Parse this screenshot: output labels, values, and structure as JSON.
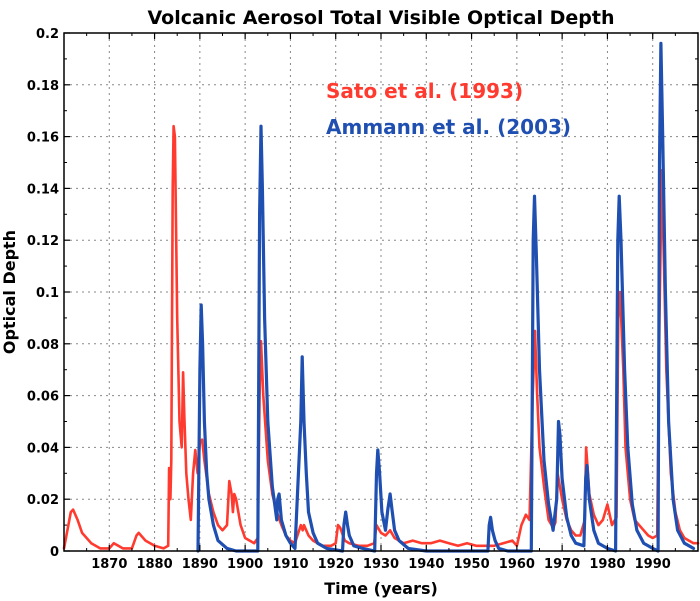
{
  "chart_data": {
    "type": "line",
    "title": "Volcanic Aerosol Total Visible Optical Depth",
    "xlabel": "Time (years)",
    "ylabel": "Optical Depth",
    "xlim": [
      1860,
      2000
    ],
    "ylim": [
      0,
      0.2
    ],
    "x_ticks": [
      1870,
      1880,
      1890,
      1900,
      1910,
      1920,
      1930,
      1940,
      1950,
      1960,
      1970,
      1980,
      1990
    ],
    "y_ticks": [
      0,
      0.02,
      0.04,
      0.06,
      0.08,
      0.1,
      0.12,
      0.14,
      0.16,
      0.18,
      0.2
    ],
    "y_tick_labels": [
      "0",
      "0.02",
      "0.04",
      "0.06",
      "0.08",
      "0.1",
      "0.12",
      "0.14",
      "0.16",
      "0.18",
      "0.2"
    ],
    "grid": true,
    "legend_position": "top-center",
    "series": [
      {
        "name": "Sato et al. (1993)",
        "color": "#ff3b30",
        "points": [
          [
            1860,
            0.001
          ],
          [
            1861.5,
            0.015
          ],
          [
            1862,
            0.016
          ],
          [
            1863,
            0.012
          ],
          [
            1864,
            0.007
          ],
          [
            1866,
            0.003
          ],
          [
            1868,
            0.001
          ],
          [
            1870,
            0.001
          ],
          [
            1871,
            0.003
          ],
          [
            1872,
            0.002
          ],
          [
            1873,
            0.001
          ],
          [
            1875,
            0.001
          ],
          [
            1876,
            0.006
          ],
          [
            1876.5,
            0.007
          ],
          [
            1878,
            0.004
          ],
          [
            1880,
            0.002
          ],
          [
            1882,
            0.001
          ],
          [
            1883,
            0.002
          ],
          [
            1883.2,
            0.032
          ],
          [
            1883.5,
            0.02
          ],
          [
            1883.7,
            0.035
          ],
          [
            1884,
            0.14
          ],
          [
            1884.2,
            0.164
          ],
          [
            1884.5,
            0.16
          ],
          [
            1885,
            0.09
          ],
          [
            1885.5,
            0.05
          ],
          [
            1886,
            0.04
          ],
          [
            1886.3,
            0.069
          ],
          [
            1886.6,
            0.05
          ],
          [
            1887,
            0.03
          ],
          [
            1887.5,
            0.02
          ],
          [
            1888,
            0.012
          ],
          [
            1888.5,
            0.03
          ],
          [
            1889,
            0.039
          ],
          [
            1889.5,
            0.03
          ],
          [
            1890,
            0.042
          ],
          [
            1890.5,
            0.043
          ],
          [
            1891,
            0.035
          ],
          [
            1892,
            0.022
          ],
          [
            1893,
            0.015
          ],
          [
            1894,
            0.01
          ],
          [
            1895,
            0.008
          ],
          [
            1896,
            0.01
          ],
          [
            1896.5,
            0.027
          ],
          [
            1897,
            0.022
          ],
          [
            1897.3,
            0.015
          ],
          [
            1897.6,
            0.022
          ],
          [
            1898,
            0.02
          ],
          [
            1899,
            0.01
          ],
          [
            1900,
            0.005
          ],
          [
            1901,
            0.004
          ],
          [
            1902,
            0.003
          ],
          [
            1902.8,
            0.005
          ],
          [
            1903.2,
            0.06
          ],
          [
            1903.5,
            0.081
          ],
          [
            1904,
            0.06
          ],
          [
            1905,
            0.035
          ],
          [
            1906,
            0.022
          ],
          [
            1907,
            0.015
          ],
          [
            1908,
            0.01
          ],
          [
            1909,
            0.006
          ],
          [
            1910,
            0.004
          ],
          [
            1911,
            0.003
          ],
          [
            1912.3,
            0.01
          ],
          [
            1912.7,
            0.008
          ],
          [
            1913,
            0.01
          ],
          [
            1914,
            0.006
          ],
          [
            1915,
            0.004
          ],
          [
            1917,
            0.002
          ],
          [
            1919,
            0.002
          ],
          [
            1920,
            0.003
          ],
          [
            1920.5,
            0.01
          ],
          [
            1921,
            0.009
          ],
          [
            1922,
            0.004
          ],
          [
            1923,
            0.003
          ],
          [
            1925,
            0.002
          ],
          [
            1927,
            0.002
          ],
          [
            1928.5,
            0.003
          ],
          [
            1929,
            0.01
          ],
          [
            1930,
            0.007
          ],
          [
            1931,
            0.006
          ],
          [
            1932,
            0.008
          ],
          [
            1933,
            0.005
          ],
          [
            1935,
            0.003
          ],
          [
            1937,
            0.004
          ],
          [
            1939,
            0.003
          ],
          [
            1941,
            0.003
          ],
          [
            1943,
            0.004
          ],
          [
            1945,
            0.003
          ],
          [
            1947,
            0.002
          ],
          [
            1949,
            0.003
          ],
          [
            1951,
            0.002
          ],
          [
            1953,
            0.002
          ],
          [
            1955,
            0.002
          ],
          [
            1957,
            0.003
          ],
          [
            1959,
            0.004
          ],
          [
            1960,
            0.002
          ],
          [
            1961,
            0.01
          ],
          [
            1962,
            0.014
          ],
          [
            1962.8,
            0.012
          ],
          [
            1963.5,
            0.06
          ],
          [
            1964,
            0.085
          ],
          [
            1964.5,
            0.06
          ],
          [
            1965,
            0.04
          ],
          [
            1966,
            0.025
          ],
          [
            1967,
            0.012
          ],
          [
            1968,
            0.009
          ],
          [
            1968.5,
            0.011
          ],
          [
            1969,
            0.03
          ],
          [
            1970,
            0.02
          ],
          [
            1971,
            0.012
          ],
          [
            1972,
            0.008
          ],
          [
            1973,
            0.006
          ],
          [
            1974,
            0.006
          ],
          [
            1975,
            0.012
          ],
          [
            1975.3,
            0.04
          ],
          [
            1975.7,
            0.03
          ],
          [
            1976,
            0.022
          ],
          [
            1977,
            0.014
          ],
          [
            1978,
            0.01
          ],
          [
            1979,
            0.012
          ],
          [
            1980,
            0.018
          ],
          [
            1981,
            0.01
          ],
          [
            1982,
            0.013
          ],
          [
            1982.4,
            0.09
          ],
          [
            1982.8,
            0.1
          ],
          [
            1983.5,
            0.07
          ],
          [
            1984,
            0.04
          ],
          [
            1985,
            0.02
          ],
          [
            1986,
            0.012
          ],
          [
            1987,
            0.01
          ],
          [
            1988,
            0.008
          ],
          [
            1989,
            0.006
          ],
          [
            1990,
            0.005
          ],
          [
            1991,
            0.006
          ],
          [
            1991.5,
            0.09
          ],
          [
            1992,
            0.147
          ],
          [
            1992.5,
            0.11
          ],
          [
            1993,
            0.07
          ],
          [
            1994,
            0.03
          ],
          [
            1995,
            0.015
          ],
          [
            1996,
            0.008
          ],
          [
            1997,
            0.005
          ],
          [
            1998,
            0.004
          ],
          [
            1999,
            0.003
          ],
          [
            2000,
            0.003
          ]
        ]
      },
      {
        "name": "Ammann et al. (2003)",
        "color": "#1f4fb0",
        "points": [
          [
            1889.6,
            0
          ],
          [
            1890,
            0.07
          ],
          [
            1890.3,
            0.095
          ],
          [
            1890.6,
            0.08
          ],
          [
            1891,
            0.05
          ],
          [
            1891.5,
            0.03
          ],
          [
            1892,
            0.02
          ],
          [
            1893,
            0.01
          ],
          [
            1894,
            0.004
          ],
          [
            1896,
            0.001
          ],
          [
            1898,
            0
          ],
          [
            1902.8,
            0
          ],
          [
            1903.2,
            0.13
          ],
          [
            1903.5,
            0.164
          ],
          [
            1903.8,
            0.14
          ],
          [
            1904.3,
            0.09
          ],
          [
            1905,
            0.05
          ],
          [
            1906,
            0.025
          ],
          [
            1907,
            0.012
          ],
          [
            1907.2,
            0.02
          ],
          [
            1907.5,
            0.022
          ],
          [
            1908,
            0.012
          ],
          [
            1909,
            0.006
          ],
          [
            1910,
            0.003
          ],
          [
            1911,
            0.001
          ],
          [
            1912.3,
            0.05
          ],
          [
            1912.6,
            0.075
          ],
          [
            1913,
            0.05
          ],
          [
            1913.5,
            0.03
          ],
          [
            1914,
            0.015
          ],
          [
            1915,
            0.007
          ],
          [
            1916,
            0.003
          ],
          [
            1918,
            0.001
          ],
          [
            1921.5,
            0
          ],
          [
            1921.8,
            0.01
          ],
          [
            1922.2,
            0.015
          ],
          [
            1922.6,
            0.01
          ],
          [
            1923,
            0.006
          ],
          [
            1924,
            0.002
          ],
          [
            1926,
            0.001
          ],
          [
            1928.6,
            0
          ],
          [
            1929,
            0.03
          ],
          [
            1929.3,
            0.039
          ],
          [
            1929.7,
            0.03
          ],
          [
            1930.2,
            0.015
          ],
          [
            1931,
            0.008
          ],
          [
            1931.5,
            0.016
          ],
          [
            1932,
            0.022
          ],
          [
            1932.5,
            0.015
          ],
          [
            1933,
            0.008
          ],
          [
            1934,
            0.004
          ],
          [
            1936,
            0.001
          ],
          [
            1940,
            0
          ],
          [
            1953.6,
            0
          ],
          [
            1953.9,
            0.01
          ],
          [
            1954.2,
            0.013
          ],
          [
            1954.6,
            0.008
          ],
          [
            1955.2,
            0.004
          ],
          [
            1956,
            0.001
          ],
          [
            1958,
            0
          ],
          [
            1963.2,
            0
          ],
          [
            1963.6,
            0.12
          ],
          [
            1963.9,
            0.137
          ],
          [
            1964.3,
            0.115
          ],
          [
            1965,
            0.07
          ],
          [
            1966,
            0.035
          ],
          [
            1967,
            0.018
          ],
          [
            1968,
            0.008
          ],
          [
            1968.8,
            0.02
          ],
          [
            1969.2,
            0.05
          ],
          [
            1969.5,
            0.045
          ],
          [
            1970,
            0.028
          ],
          [
            1971,
            0.013
          ],
          [
            1972,
            0.006
          ],
          [
            1973,
            0.003
          ],
          [
            1974.8,
            0.002
          ],
          [
            1975.2,
            0.028
          ],
          [
            1975.5,
            0.033
          ],
          [
            1976,
            0.02
          ],
          [
            1977,
            0.008
          ],
          [
            1978,
            0.003
          ],
          [
            1980,
            0.001
          ],
          [
            1981.8,
            0
          ],
          [
            1982.3,
            0.12
          ],
          [
            1982.6,
            0.137
          ],
          [
            1983,
            0.12
          ],
          [
            1983.8,
            0.07
          ],
          [
            1984.5,
            0.04
          ],
          [
            1985.5,
            0.018
          ],
          [
            1986.5,
            0.008
          ],
          [
            1988,
            0.003
          ],
          [
            1990,
            0.001
          ],
          [
            1991.2,
            0
          ],
          [
            1991.5,
            0.15
          ],
          [
            1991.8,
            0.196
          ],
          [
            1992.2,
            0.16
          ],
          [
            1992.8,
            0.1
          ],
          [
            1993.5,
            0.05
          ],
          [
            1994.5,
            0.02
          ],
          [
            1995.5,
            0.008
          ],
          [
            1997,
            0.003
          ],
          [
            1999,
            0.001
          ]
        ]
      }
    ]
  }
}
